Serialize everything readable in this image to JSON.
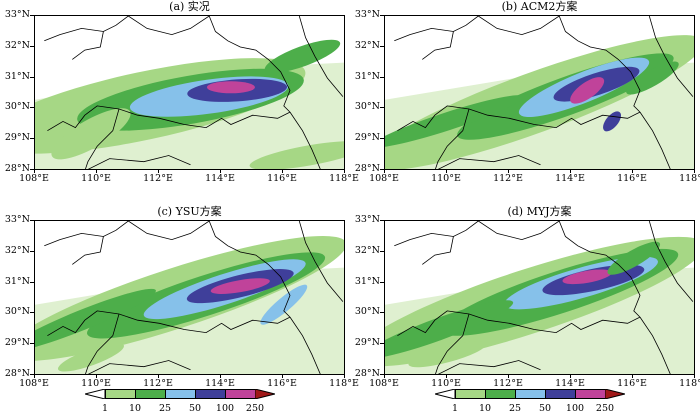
{
  "panels": [
    {
      "id": "a",
      "title": "(a) 实况",
      "variant": 0
    },
    {
      "id": "b",
      "title": "(b) ACM2方案",
      "variant": 1
    },
    {
      "id": "c",
      "title": "(c) YSU方案",
      "variant": 2
    },
    {
      "id": "d",
      "title": "(d) MYJ方案",
      "variant": 3
    }
  ],
  "y_ticks": [
    "33°N",
    "32°N",
    "31°N",
    "30°N",
    "29°N",
    "28°N"
  ],
  "x_ticks": [
    "108°E",
    "110°E",
    "112°E",
    "114°E",
    "116°E",
    "118°E"
  ],
  "colorbar": {
    "levels": [
      "1",
      "10",
      "25",
      "50",
      "100",
      "250"
    ],
    "colors": [
      "#ffffff",
      "#a6d785",
      "#4dae4a",
      "#86c1ea",
      "#3f3f9a",
      "#c0439a",
      "#a01818"
    ]
  }
}
